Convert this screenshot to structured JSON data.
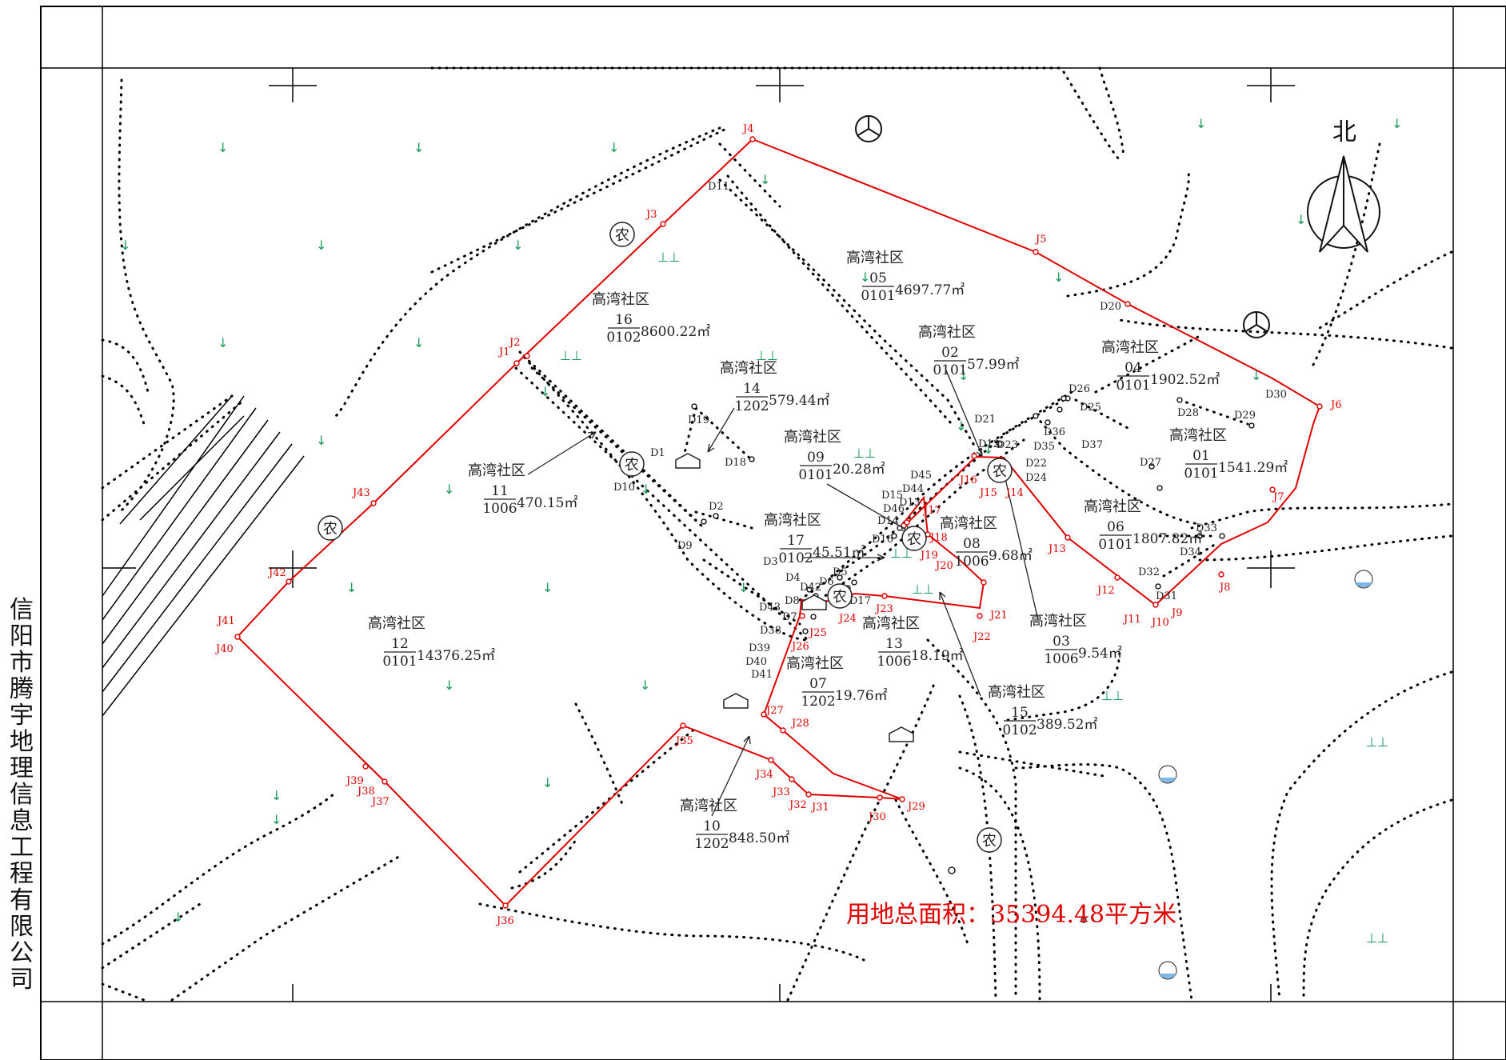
{
  "company": "信阳市腾宇地理信息工程有限公司",
  "north_label": "北",
  "total_area": "用地总面积：35394.48平方米",
  "farm_char": "农",
  "veg_glyph": "↓",
  "grass_glyph": "⊥⊥",
  "parcels": [
    {
      "owner": "高湾社区",
      "num": "16",
      "code": "0102",
      "area": "8600.22㎡"
    },
    {
      "owner": "高湾社区",
      "num": "05",
      "code": "0101",
      "area": "4697.77㎡"
    },
    {
      "owner": "高湾社区",
      "num": "02",
      "code": "0101",
      "area": "57.99㎡"
    },
    {
      "owner": "高湾社区",
      "num": "04",
      "code": "0101",
      "area": "1902.52㎡"
    },
    {
      "owner": "高湾社区",
      "num": "14",
      "code": "1202",
      "area": "579.44㎡"
    },
    {
      "owner": "高湾社区",
      "num": "09",
      "code": "0101",
      "area": "20.28㎡"
    },
    {
      "owner": "高湾社区",
      "num": "01",
      "code": "0101",
      "area": "1541.29㎡"
    },
    {
      "owner": "高湾社区",
      "num": "11",
      "code": "1006",
      "area": "470.15㎡"
    },
    {
      "owner": "高湾社区",
      "num": "06",
      "code": "0101",
      "area": "1807.82㎡"
    },
    {
      "owner": "高湾社区",
      "num": "17",
      "code": "0102",
      "area": "45.51㎡"
    },
    {
      "owner": "高湾社区",
      "num": "08",
      "code": "1006",
      "area": "9.68㎡"
    },
    {
      "owner": "高湾社区",
      "num": "12",
      "code": "0101",
      "area": "14376.25㎡"
    },
    {
      "owner": "高湾社区",
      "num": "13",
      "code": "1006",
      "area": "18.19㎡"
    },
    {
      "owner": "高湾社区",
      "num": "03",
      "code": "1006",
      "area": "9.54㎡"
    },
    {
      "owner": "高湾社区",
      "num": "07",
      "code": "1202",
      "area": "19.76㎡"
    },
    {
      "owner": "高湾社区",
      "num": "15",
      "code": "0102",
      "area": "389.52㎡"
    },
    {
      "owner": "高湾社区",
      "num": "10",
      "code": "1202",
      "area": "848.50㎡"
    }
  ],
  "j_points": [
    "J1",
    "J2",
    "J3",
    "J4",
    "J5",
    "J6",
    "J7",
    "J8",
    "J9",
    "J10",
    "J11",
    "J12",
    "J13",
    "J14",
    "J15",
    "J16",
    "J17",
    "J18",
    "J19",
    "J20",
    "J21",
    "J22",
    "J23",
    "J24",
    "J25",
    "J26",
    "J27",
    "J28",
    "J29",
    "J30",
    "J31",
    "J32",
    "J33",
    "J34",
    "J35",
    "J36",
    "J37",
    "J38",
    "J39",
    "J40",
    "J41",
    "J42",
    "J43"
  ],
  "d_points": [
    "D1",
    "D2",
    "D3",
    "D4",
    "D5",
    "D6",
    "D7",
    "D8",
    "D9",
    "D10",
    "D11",
    "D12",
    "D13",
    "D14",
    "D15",
    "D16",
    "D17",
    "D18",
    "D19",
    "D20",
    "D21",
    "D22",
    "D23",
    "D24",
    "D25",
    "D26",
    "D27",
    "D28",
    "D29",
    "D30",
    "D31",
    "D32",
    "D33",
    "D34",
    "D35",
    "D36",
    "D37",
    "D38",
    "D39",
    "D40",
    "D41",
    "D42",
    "D43",
    "D44",
    "D45",
    "D46"
  ]
}
